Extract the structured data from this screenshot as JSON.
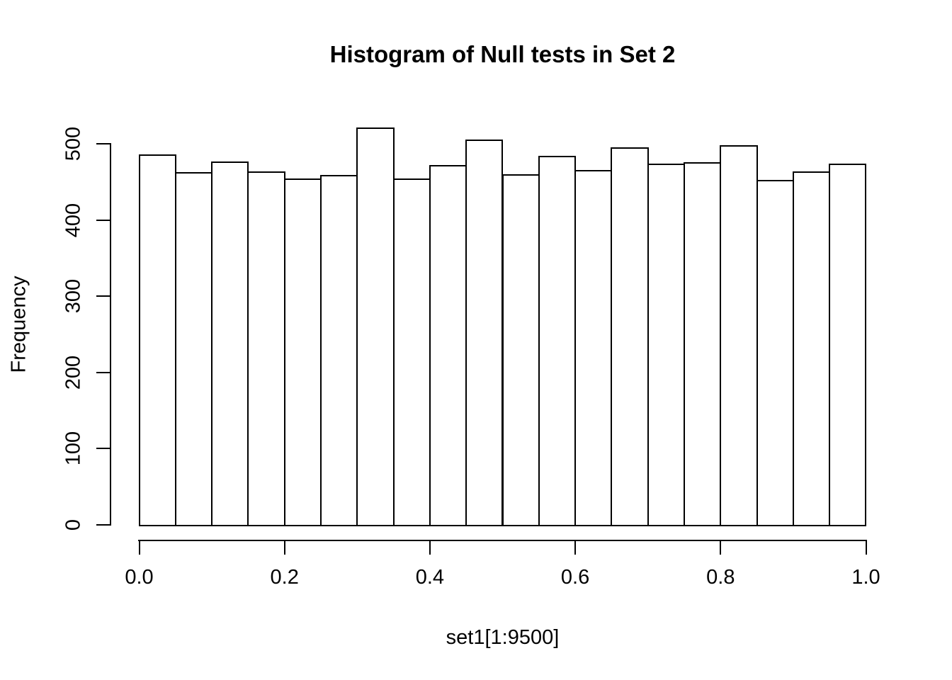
{
  "page": {
    "background": "#ffffff",
    "foreground": "#000000"
  },
  "chart_data": {
    "type": "bar",
    "chart_style": "histogram",
    "title": "Histogram of Null tests in Set 2",
    "xlabel": "set1[1:9500]",
    "ylabel": "Frequency",
    "xlim": [
      0.0,
      1.0
    ],
    "ylim": [
      0,
      500
    ],
    "grid": false,
    "legend": false,
    "bar_fill": "#ffffff",
    "bar_stroke": "#000000",
    "bins": {
      "start": 0.0,
      "width": 0.05,
      "count": 20
    },
    "bin_edges": [
      0.0,
      0.05,
      0.1,
      0.15,
      0.2,
      0.25,
      0.3,
      0.35,
      0.4,
      0.45,
      0.5,
      0.55,
      0.6,
      0.65,
      0.7,
      0.75,
      0.8,
      0.85,
      0.9,
      0.95,
      1.0
    ],
    "values": [
      486,
      463,
      477,
      464,
      454,
      459,
      521,
      454,
      472,
      506,
      460,
      484,
      466,
      495,
      474,
      476,
      498,
      453,
      464,
      474
    ],
    "x_ticks": [
      "0.0",
      "0.2",
      "0.4",
      "0.6",
      "0.8",
      "1.0"
    ],
    "y_ticks": [
      0,
      100,
      200,
      300,
      400,
      500
    ]
  }
}
